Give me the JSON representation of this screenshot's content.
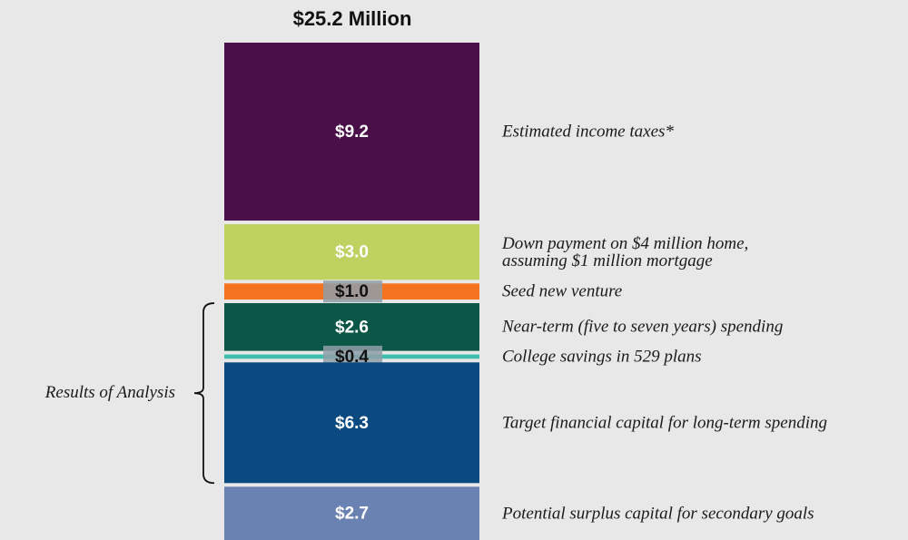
{
  "chart_data": {
    "type": "stacked_bar",
    "title": "$25.2 Million",
    "series": [
      {
        "name": "Estimated income taxes*",
        "color": "#4a0e48",
        "values": [
          9.2
        ],
        "value_labels": [
          "$9.2"
        ]
      },
      {
        "name": "Down payment on $4 million home,\nassuming $1 million mortgage",
        "color": "#bfd160",
        "values": [
          3.0
        ],
        "value_labels": [
          "$3.0"
        ]
      },
      {
        "name": "Seed new venture",
        "color": "#f47321",
        "values": [
          1.0
        ],
        "value_labels": [
          "$1.0"
        ]
      },
      {
        "name": "Near-term (five to seven years) spending",
        "color": "#0b5646",
        "values": [
          2.6
        ],
        "value_labels": [
          "$2.6"
        ]
      },
      {
        "name": "College savings in 529 plans",
        "color": "#3dbfae",
        "values": [
          0.4
        ],
        "value_labels": [
          "$0.4"
        ]
      },
      {
        "name": "Target financial capital for long-term spending",
        "color": "#0b4a80",
        "values": [
          6.3
        ],
        "value_labels": [
          "$6.3"
        ]
      },
      {
        "name": "Potential surplus capital for secondary goals",
        "color": "#6a82b1",
        "values": [
          2.7
        ],
        "value_labels": [
          "$2.7"
        ]
      }
    ],
    "annotations": [
      {
        "text": "Results of Analysis",
        "spans": [
          3,
          5
        ]
      }
    ]
  }
}
